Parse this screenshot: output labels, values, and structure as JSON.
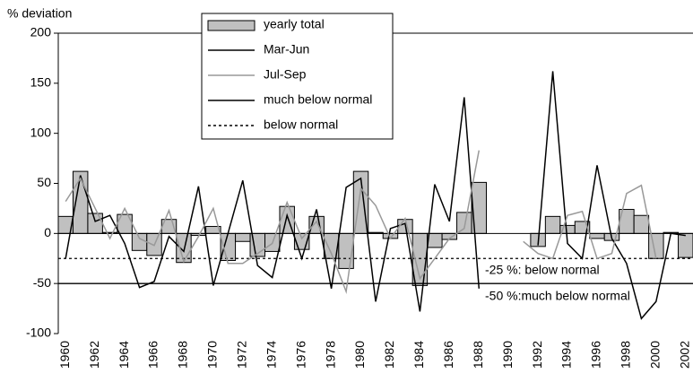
{
  "chart_data": {
    "type": "bar",
    "y_label": "% deviation",
    "x": [
      1960,
      1961,
      1962,
      1963,
      1964,
      1965,
      1966,
      1967,
      1968,
      1969,
      1970,
      1971,
      1972,
      1973,
      1974,
      1975,
      1976,
      1977,
      1978,
      1979,
      1980,
      1981,
      1982,
      1983,
      1984,
      1985,
      1986,
      1987,
      1988,
      1989,
      1990,
      1991,
      1992,
      1993,
      1994,
      1995,
      1996,
      1997,
      1998,
      1999,
      2000,
      2001,
      2002
    ],
    "xlim": [
      1959.5,
      2002.5
    ],
    "xticks": [
      1960,
      1962,
      1964,
      1966,
      1968,
      1970,
      1972,
      1974,
      1976,
      1978,
      1980,
      1982,
      1984,
      1986,
      1988,
      1990,
      1992,
      1994,
      1996,
      1998,
      2000,
      2002
    ],
    "ylim": [
      -100,
      200
    ],
    "yticks": [
      -100,
      -50,
      0,
      50,
      100,
      150,
      200
    ],
    "grid": false,
    "legend": "top",
    "series": [
      {
        "name": "yearly total",
        "type": "bar",
        "color": "#c0c0c0",
        "values": [
          17,
          62,
          20,
          1,
          19,
          -17,
          -22,
          14,
          -29,
          -2,
          7,
          -27,
          -8,
          -23,
          -18,
          27,
          -16,
          17,
          -25,
          -35,
          62,
          1,
          -5,
          14,
          -52,
          -14,
          -6,
          21,
          51,
          null,
          null,
          null,
          -13,
          17,
          8,
          12,
          -5,
          -7,
          24,
          18,
          -25,
          1,
          -24
        ]
      },
      {
        "name": "Mar-Jun",
        "type": "line",
        "color": "#000000",
        "values": [
          -25,
          58,
          12,
          18,
          -10,
          -54,
          -48,
          -3,
          -18,
          47,
          -52,
          0,
          53,
          -32,
          -44,
          18,
          -25,
          24,
          -55,
          46,
          55,
          -68,
          5,
          10,
          -78,
          49,
          12,
          136,
          -55,
          null,
          null,
          null,
          -12,
          162,
          -10,
          -25,
          68,
          -5,
          -30,
          -85,
          -68,
          0,
          -2
        ]
      },
      {
        "name": "Jul-Sep",
        "type": "line",
        "color": "#999999",
        "values": [
          32,
          55,
          25,
          -5,
          25,
          -5,
          -12,
          23,
          -28,
          -3,
          25,
          -30,
          -30,
          -20,
          -10,
          31,
          -5,
          12,
          -20,
          -58,
          45,
          28,
          -5,
          15,
          -45,
          -25,
          -5,
          5,
          83,
          null,
          null,
          -8,
          -20,
          -25,
          18,
          22,
          -25,
          -20,
          40,
          48,
          -25,
          null,
          null
        ]
      }
    ],
    "reference_lines": [
      {
        "name": "much below normal",
        "value": -50,
        "color": "#000000",
        "style": "solid"
      },
      {
        "name": "below normal",
        "value": -25,
        "color": "#000000",
        "style": "dotted"
      }
    ],
    "annotations": [
      "-25 %: below normal",
      "-50 %:much below normal"
    ]
  }
}
